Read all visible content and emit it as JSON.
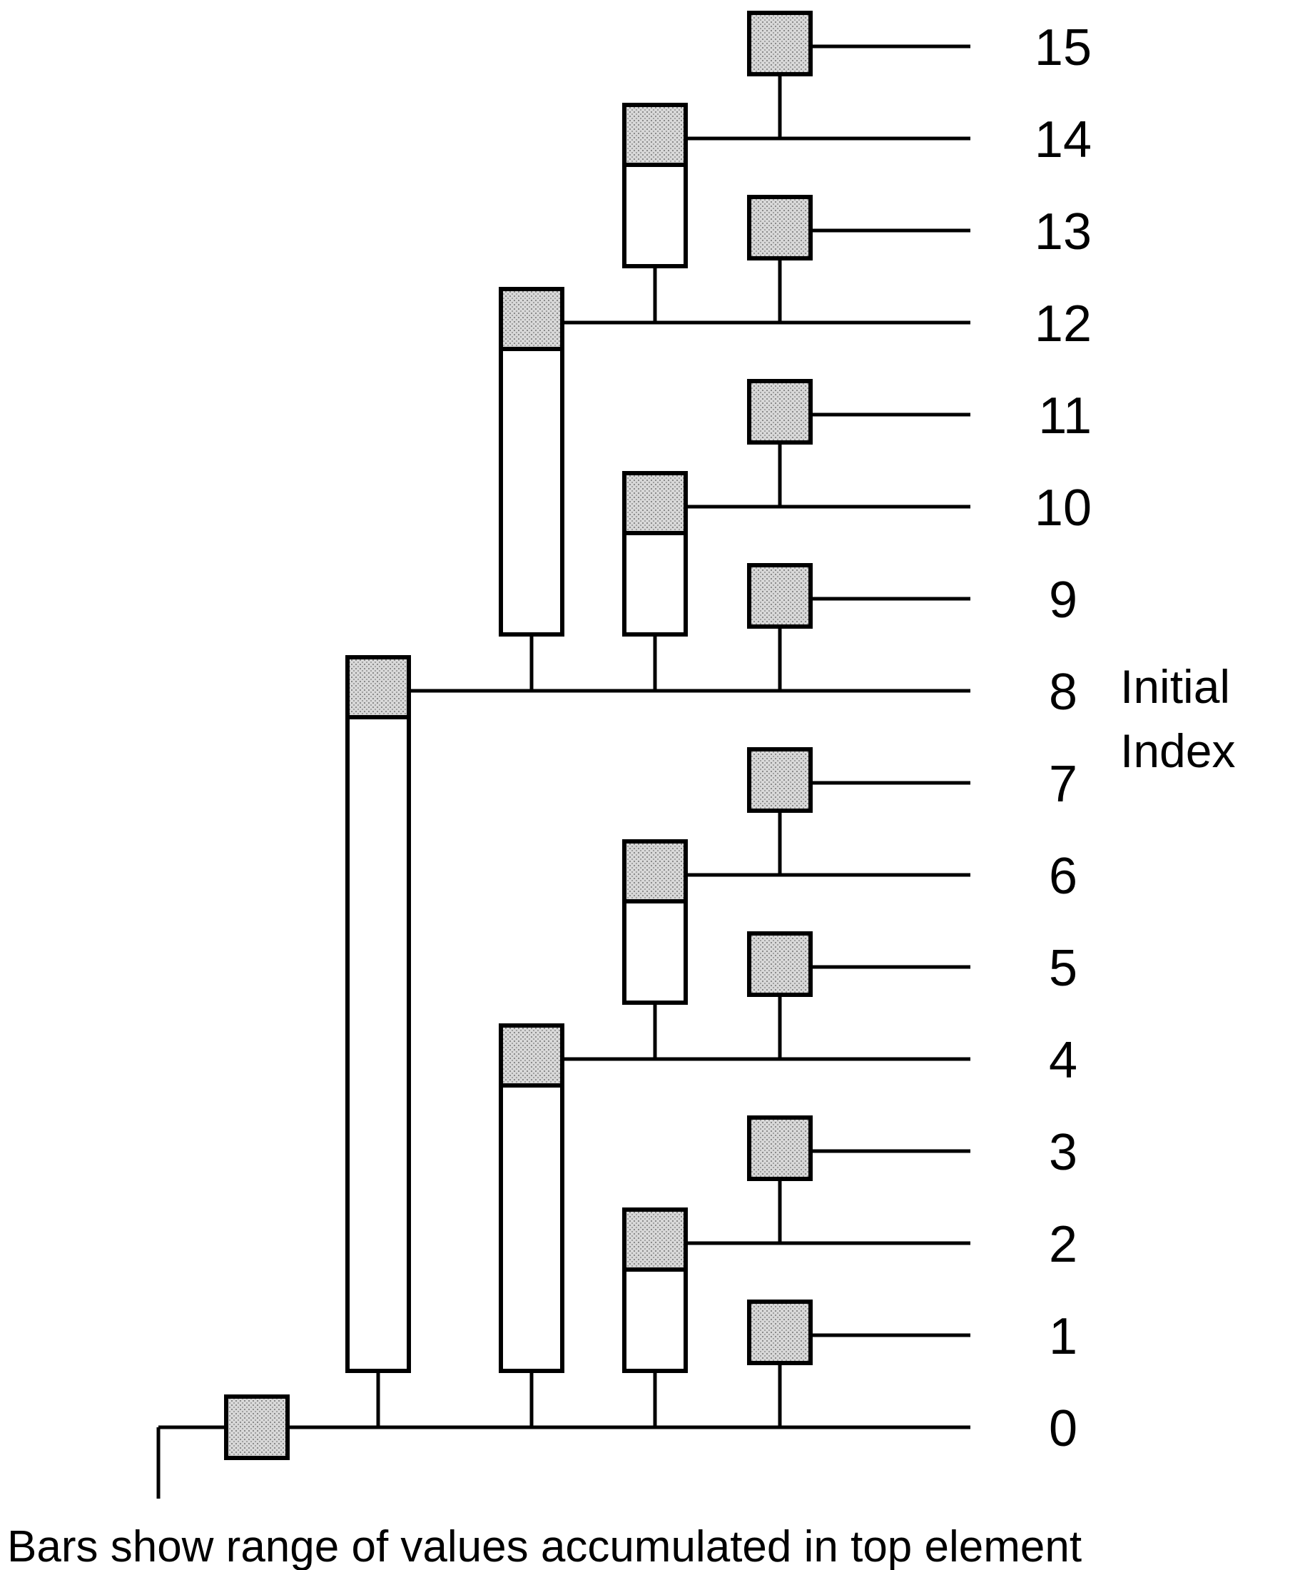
{
  "diagram": {
    "index_labels": [
      "0",
      "1",
      "2",
      "3",
      "4",
      "5",
      "6",
      "7",
      "8",
      "9",
      "10",
      "11",
      "12",
      "13",
      "14",
      "15"
    ],
    "axis_title_line1": "Initial",
    "axis_title_line2": "Index",
    "caption": "Bars show range of values accumulated in top element",
    "colors": {
      "line": "#000000",
      "cell_fill": "#cfcfcf",
      "bar_fill": "#ffffff"
    }
  }
}
